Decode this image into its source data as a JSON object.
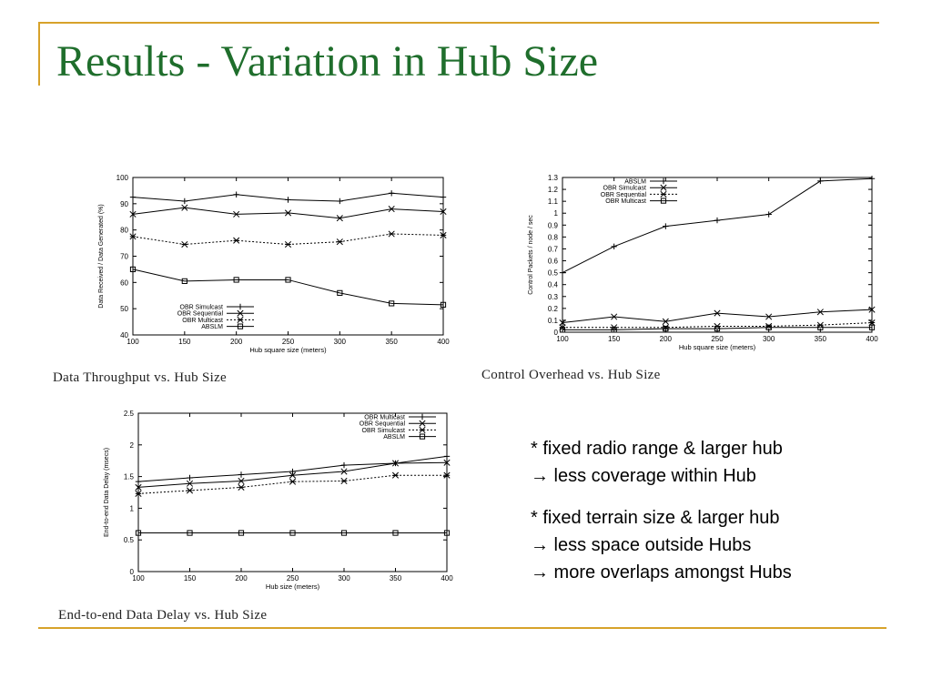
{
  "slide": {
    "title": "Results - Variation in Hub Size",
    "captions": [
      "Data Throughput vs. Hub Size",
      "Control Overhead vs. Hub Size",
      "End-to-end Data Delay vs. Hub Size"
    ],
    "notes": [
      [
        "* fixed radio range & larger hub",
        "→ less coverage within Hub"
      ],
      [
        "* fixed terrain size & larger hub",
        "→ less space outside Hubs",
        "→ more overlaps amongst Hubs"
      ]
    ],
    "colors": {
      "title": "#1f6e2c",
      "accent": "#d7a22a"
    }
  },
  "chart_data": [
    {
      "type": "line",
      "xlabel": "Hub square size (meters)",
      "ylabel": "Data Received / Data Generated (%)",
      "x": [
        100,
        150,
        200,
        250,
        300,
        350,
        400
      ],
      "xlim": [
        100,
        400
      ],
      "ylim": [
        40,
        100
      ],
      "yticks": [
        40,
        50,
        60,
        70,
        80,
        90,
        100
      ],
      "legend_position": "bottom-center",
      "series": [
        {
          "name": "OBR Simulcast",
          "marker": "plus",
          "dash": "solid",
          "values": [
            92.5,
            91,
            93.5,
            91.5,
            91,
            94,
            92.5
          ]
        },
        {
          "name": "OBR Sequential",
          "marker": "x",
          "dash": "solid",
          "values": [
            86,
            88.5,
            86,
            86.5,
            84.5,
            88,
            87
          ]
        },
        {
          "name": "OBR Multicast",
          "marker": "star",
          "dash": "dashed",
          "values": [
            77.5,
            74.5,
            76,
            74.5,
            75.5,
            78.5,
            78
          ]
        },
        {
          "name": "ABSLM",
          "marker": "square",
          "dash": "solid",
          "values": [
            65,
            60.5,
            61,
            61,
            56,
            52,
            51.5
          ]
        }
      ]
    },
    {
      "type": "line",
      "xlabel": "Hub square size (meters)",
      "ylabel": "Control Packets / node / sec",
      "x": [
        100,
        150,
        200,
        250,
        300,
        350,
        400
      ],
      "xlim": [
        100,
        400
      ],
      "ylim": [
        0,
        1.3
      ],
      "yticks": [
        0,
        0.1,
        0.2,
        0.3,
        0.4,
        0.5,
        0.6,
        0.7,
        0.8,
        0.9,
        1,
        1.1,
        1.2,
        1.3
      ],
      "legend_position": "top-left",
      "series": [
        {
          "name": "ABSLM",
          "marker": "plus",
          "dash": "solid",
          "values": [
            0.5,
            0.72,
            0.89,
            0.94,
            0.99,
            1.27,
            1.29
          ]
        },
        {
          "name": "OBR Simulcast",
          "marker": "x",
          "dash": "solid",
          "values": [
            0.08,
            0.13,
            0.09,
            0.16,
            0.13,
            0.17,
            0.19
          ]
        },
        {
          "name": "OBR Sequential",
          "marker": "star",
          "dash": "dashed",
          "values": [
            0.04,
            0.04,
            0.04,
            0.05,
            0.05,
            0.06,
            0.08
          ]
        },
        {
          "name": "OBR Multicast",
          "marker": "square",
          "dash": "solid",
          "values": [
            0.02,
            0.02,
            0.03,
            0.03,
            0.04,
            0.04,
            0.04
          ]
        }
      ]
    },
    {
      "type": "line",
      "xlabel": "Hub size (meters)",
      "ylabel": "End-to-end Data Delay (msecs)",
      "x": [
        100,
        150,
        200,
        250,
        300,
        350,
        400
      ],
      "xlim": [
        100,
        400
      ],
      "ylim": [
        0,
        2.5
      ],
      "yticks": [
        0,
        0.5,
        1,
        1.5,
        2,
        2.5
      ],
      "legend_position": "top-right",
      "series": [
        {
          "name": "OBR Multicast",
          "marker": "plus",
          "dash": "solid",
          "values": [
            1.42,
            1.48,
            1.53,
            1.58,
            1.68,
            1.71,
            1.82
          ]
        },
        {
          "name": "OBR Sequential",
          "marker": "x",
          "dash": "solid",
          "values": [
            1.33,
            1.39,
            1.43,
            1.52,
            1.58,
            1.71,
            1.72
          ]
        },
        {
          "name": "OBR Simulcast",
          "marker": "star",
          "dash": "dashed",
          "values": [
            1.23,
            1.28,
            1.33,
            1.42,
            1.43,
            1.52,
            1.52
          ]
        },
        {
          "name": "ABSLM",
          "marker": "square",
          "dash": "solid",
          "values": [
            0.61,
            0.61,
            0.61,
            0.61,
            0.61,
            0.61,
            0.61
          ]
        }
      ]
    }
  ]
}
